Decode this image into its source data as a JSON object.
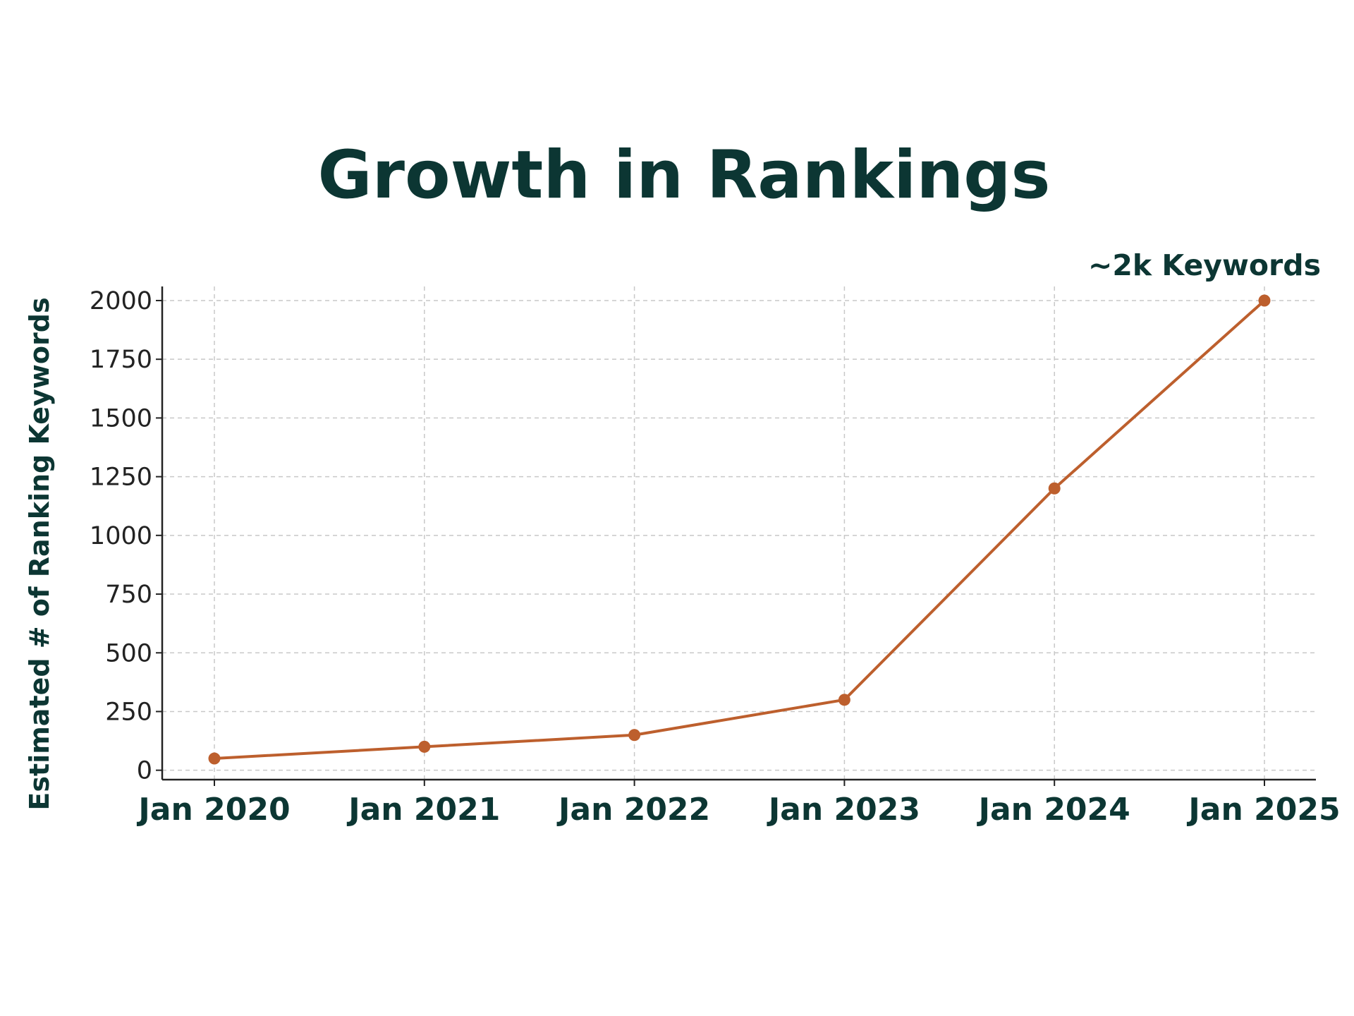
{
  "chart_data": {
    "type": "line",
    "title": "Growth in Rankings",
    "xlabel": "",
    "ylabel": "Estimated # of Ranking Keywords",
    "categories": [
      "Jan 2020",
      "Jan 2021",
      "Jan 2022",
      "Jan 2023",
      "Jan 2024",
      "Jan 2025"
    ],
    "x": [
      "2020-01",
      "2021-01",
      "2022-01",
      "2023-01",
      "2024-01",
      "2025-01"
    ],
    "series": [
      {
        "values": [
          50,
          100,
          150,
          300,
          1200,
          2000
        ],
        "color": "#bd5f2d"
      }
    ],
    "yticks": [
      0,
      250,
      500,
      750,
      1000,
      1250,
      1500,
      1750,
      2000
    ],
    "ylim": [
      -40,
      2060
    ],
    "grid": true,
    "annotation": {
      "text": "~2k Keywords",
      "x": "2025-01",
      "y": 2000
    },
    "colors": {
      "text": "#0c3633",
      "line": "#bd5f2d",
      "grid": "#c8c8c8",
      "axis": "#222222"
    }
  }
}
